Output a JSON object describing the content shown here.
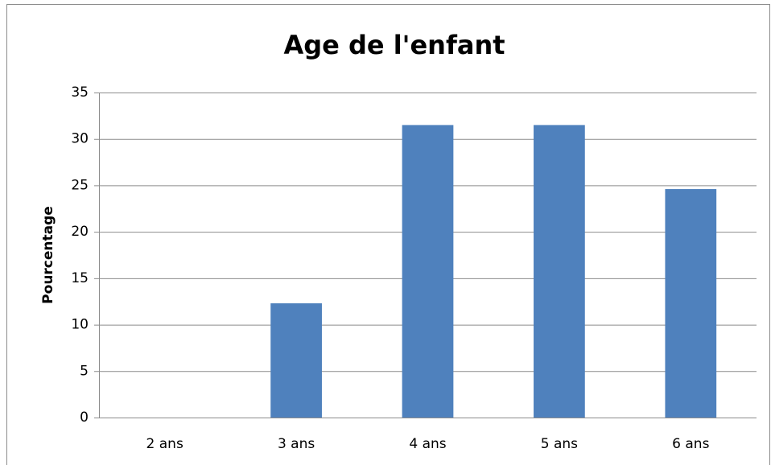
{
  "chart_data": {
    "type": "bar",
    "title": "Age de l'enfant",
    "y_label": "Pourcentage",
    "categories": [
      "2 ans",
      "3 ans",
      "4 ans",
      "5 ans",
      "6 ans"
    ],
    "values": [
      0,
      12.3,
      31.5,
      31.5,
      24.6
    ],
    "color": "#4f81bd",
    "ylim": [
      0,
      35
    ],
    "yticks": [
      0,
      5,
      10,
      15,
      20,
      25,
      30,
      35
    ],
    "grid": true
  }
}
